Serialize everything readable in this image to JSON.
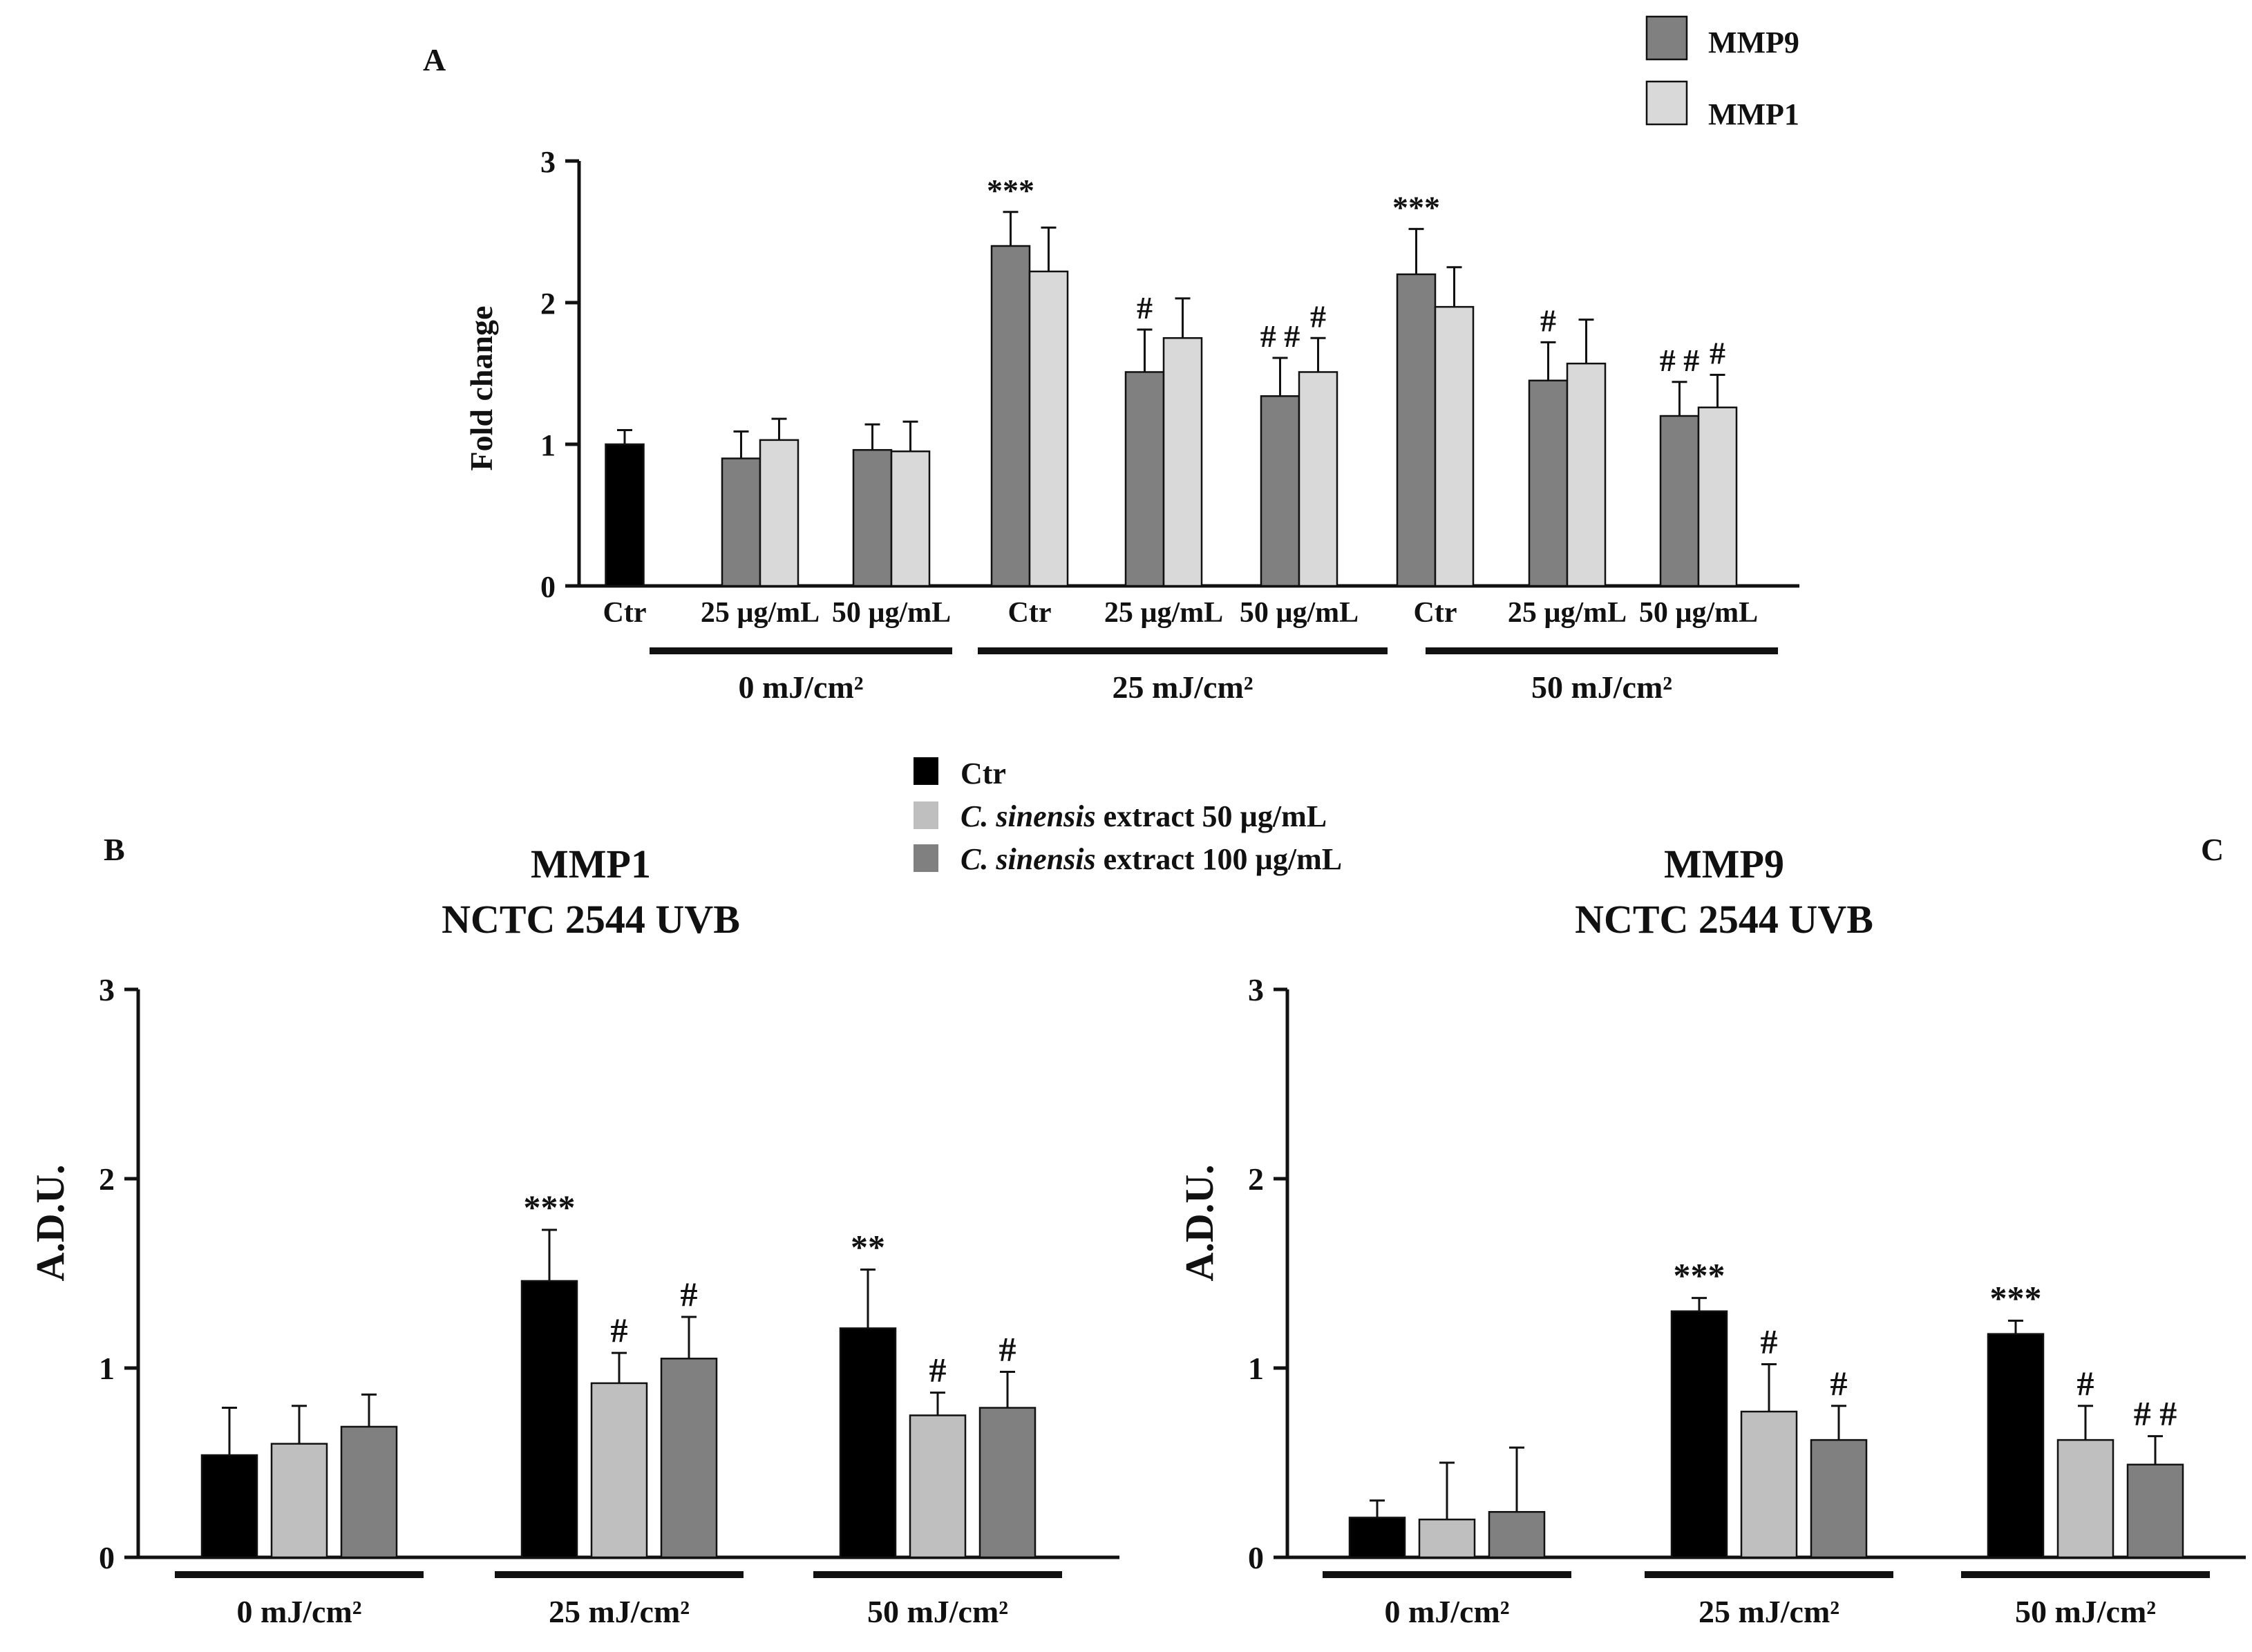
{
  "chart_data": [
    {
      "panel": "A",
      "type": "bar",
      "title": "",
      "ylabel": "Fold change",
      "ylim": [
        0,
        3
      ],
      "yticks": [
        "0",
        "1",
        "2",
        "3"
      ],
      "legend": [
        {
          "name": "MMP9",
          "color": "#808080"
        },
        {
          "name": "MMP1",
          "color": "#d9d9d9"
        }
      ],
      "ctr_color": "#000000",
      "categories": [
        "Ctr",
        "25 µg/mL",
        "50 µg/mL",
        "Ctr",
        "25 µg/mL",
        "50 µg/mL",
        "Ctr",
        "25 µg/mL",
        "50 µg/mL"
      ],
      "groups": [
        "0 mJ/cm²",
        "25 mJ/cm²",
        "50 mJ/cm²"
      ],
      "points": [
        {
          "cat": 0,
          "series": "Ctr",
          "value": 1.0,
          "err": 0.1,
          "mark": ""
        },
        {
          "cat": 1,
          "series": "MMP9",
          "value": 0.9,
          "err": 0.19,
          "mark": ""
        },
        {
          "cat": 1,
          "series": "MMP1",
          "value": 1.03,
          "err": 0.15,
          "mark": ""
        },
        {
          "cat": 2,
          "series": "MMP9",
          "value": 0.96,
          "err": 0.18,
          "mark": ""
        },
        {
          "cat": 2,
          "series": "MMP1",
          "value": 0.95,
          "err": 0.21,
          "mark": ""
        },
        {
          "cat": 3,
          "series": "MMP9",
          "value": 2.4,
          "err": 0.24,
          "mark": "***"
        },
        {
          "cat": 3,
          "series": "MMP1",
          "value": 2.22,
          "err": 0.31,
          "mark": ""
        },
        {
          "cat": 4,
          "series": "MMP9",
          "value": 1.51,
          "err": 0.3,
          "mark": "#"
        },
        {
          "cat": 4,
          "series": "MMP1",
          "value": 1.75,
          "err": 0.28,
          "mark": ""
        },
        {
          "cat": 5,
          "series": "MMP9",
          "value": 1.34,
          "err": 0.27,
          "mark": "##"
        },
        {
          "cat": 5,
          "series": "MMP1",
          "value": 1.51,
          "err": 0.24,
          "mark": "#"
        },
        {
          "cat": 6,
          "series": "MMP9",
          "value": 2.2,
          "err": 0.32,
          "mark": "***"
        },
        {
          "cat": 6,
          "series": "MMP1",
          "value": 1.97,
          "err": 0.28,
          "mark": ""
        },
        {
          "cat": 7,
          "series": "MMP9",
          "value": 1.45,
          "err": 0.27,
          "mark": "#"
        },
        {
          "cat": 7,
          "series": "MMP1",
          "value": 1.57,
          "err": 0.31,
          "mark": ""
        },
        {
          "cat": 8,
          "series": "MMP9",
          "value": 1.2,
          "err": 0.24,
          "mark": "##"
        },
        {
          "cat": 8,
          "series": "MMP1",
          "value": 1.26,
          "err": 0.23,
          "mark": "#"
        }
      ]
    },
    {
      "panel": "B",
      "type": "bar",
      "title": "MMP1",
      "subtitle": "NCTC 2544 UVB",
      "ylabel": "A.D.U.",
      "ylim": [
        0,
        3
      ],
      "yticks": [
        "0",
        "1",
        "2",
        "3"
      ],
      "categories": [
        "0 mJ/cm²",
        "25 mJ/cm²",
        "50 mJ/cm²"
      ],
      "series": [
        {
          "name": "Ctr",
          "color": "#000000",
          "values": [
            0.54,
            1.46,
            1.21
          ],
          "errors": [
            0.25,
            0.27,
            0.31
          ],
          "marks": [
            "",
            "***",
            "**"
          ]
        },
        {
          "name": "C. sinensis extract 50 µg/mL",
          "color": "#bfbfbf",
          "values": [
            0.6,
            0.92,
            0.75
          ],
          "errors": [
            0.2,
            0.16,
            0.12
          ],
          "marks": [
            "",
            "#",
            "#"
          ]
        },
        {
          "name": "C. sinensis extract 100 µg/mL",
          "color": "#808080",
          "values": [
            0.69,
            1.05,
            0.79
          ],
          "errors": [
            0.17,
            0.22,
            0.19
          ],
          "marks": [
            "",
            "#",
            "#"
          ]
        }
      ]
    },
    {
      "panel": "C",
      "type": "bar",
      "title": "MMP9",
      "subtitle": "NCTC 2544 UVB",
      "ylabel": "A.D.U.",
      "ylim": [
        0,
        3
      ],
      "yticks": [
        "0",
        "1",
        "2",
        "3"
      ],
      "categories": [
        "0 mJ/cm²",
        "25 mJ/cm²",
        "50 mJ/cm²"
      ],
      "series": [
        {
          "name": "Ctr",
          "color": "#000000",
          "values": [
            0.21,
            1.3,
            1.18
          ],
          "errors": [
            0.09,
            0.07,
            0.07
          ],
          "marks": [
            "",
            "***",
            "***"
          ]
        },
        {
          "name": "C. sinensis extract 50 µg/mL",
          "color": "#bfbfbf",
          "values": [
            0.2,
            0.77,
            0.62
          ],
          "errors": [
            0.3,
            0.25,
            0.18
          ],
          "marks": [
            "",
            "#",
            "#"
          ]
        },
        {
          "name": "C. sinensis extract 100 µg/mL",
          "color": "#808080",
          "values": [
            0.24,
            0.62,
            0.49
          ],
          "errors": [
            0.34,
            0.18,
            0.15
          ],
          "marks": [
            "",
            "#",
            "##"
          ]
        }
      ]
    }
  ],
  "legend_bc": {
    "items": [
      {
        "italic": "",
        "text": "Ctr",
        "color": "#000000"
      },
      {
        "italic": "C. sinensis",
        "text": " extract 50 µg/mL",
        "color": "#bfbfbf"
      },
      {
        "italic": "C. sinensis",
        "text": " extract 100 µg/mL",
        "color": "#808080"
      }
    ]
  }
}
